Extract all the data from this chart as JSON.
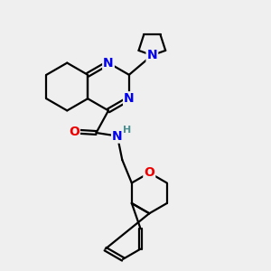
{
  "bg_color": "#efefef",
  "atom_colors": {
    "N": "#0000ee",
    "O": "#ee0000",
    "H": "#4a9090",
    "C": "#000000"
  },
  "bond_color": "#000000",
  "bond_width": 1.6,
  "font_size_atom": 10,
  "font_size_H": 8,
  "xlim": [
    0,
    10
  ],
  "ylim": [
    0,
    10
  ]
}
